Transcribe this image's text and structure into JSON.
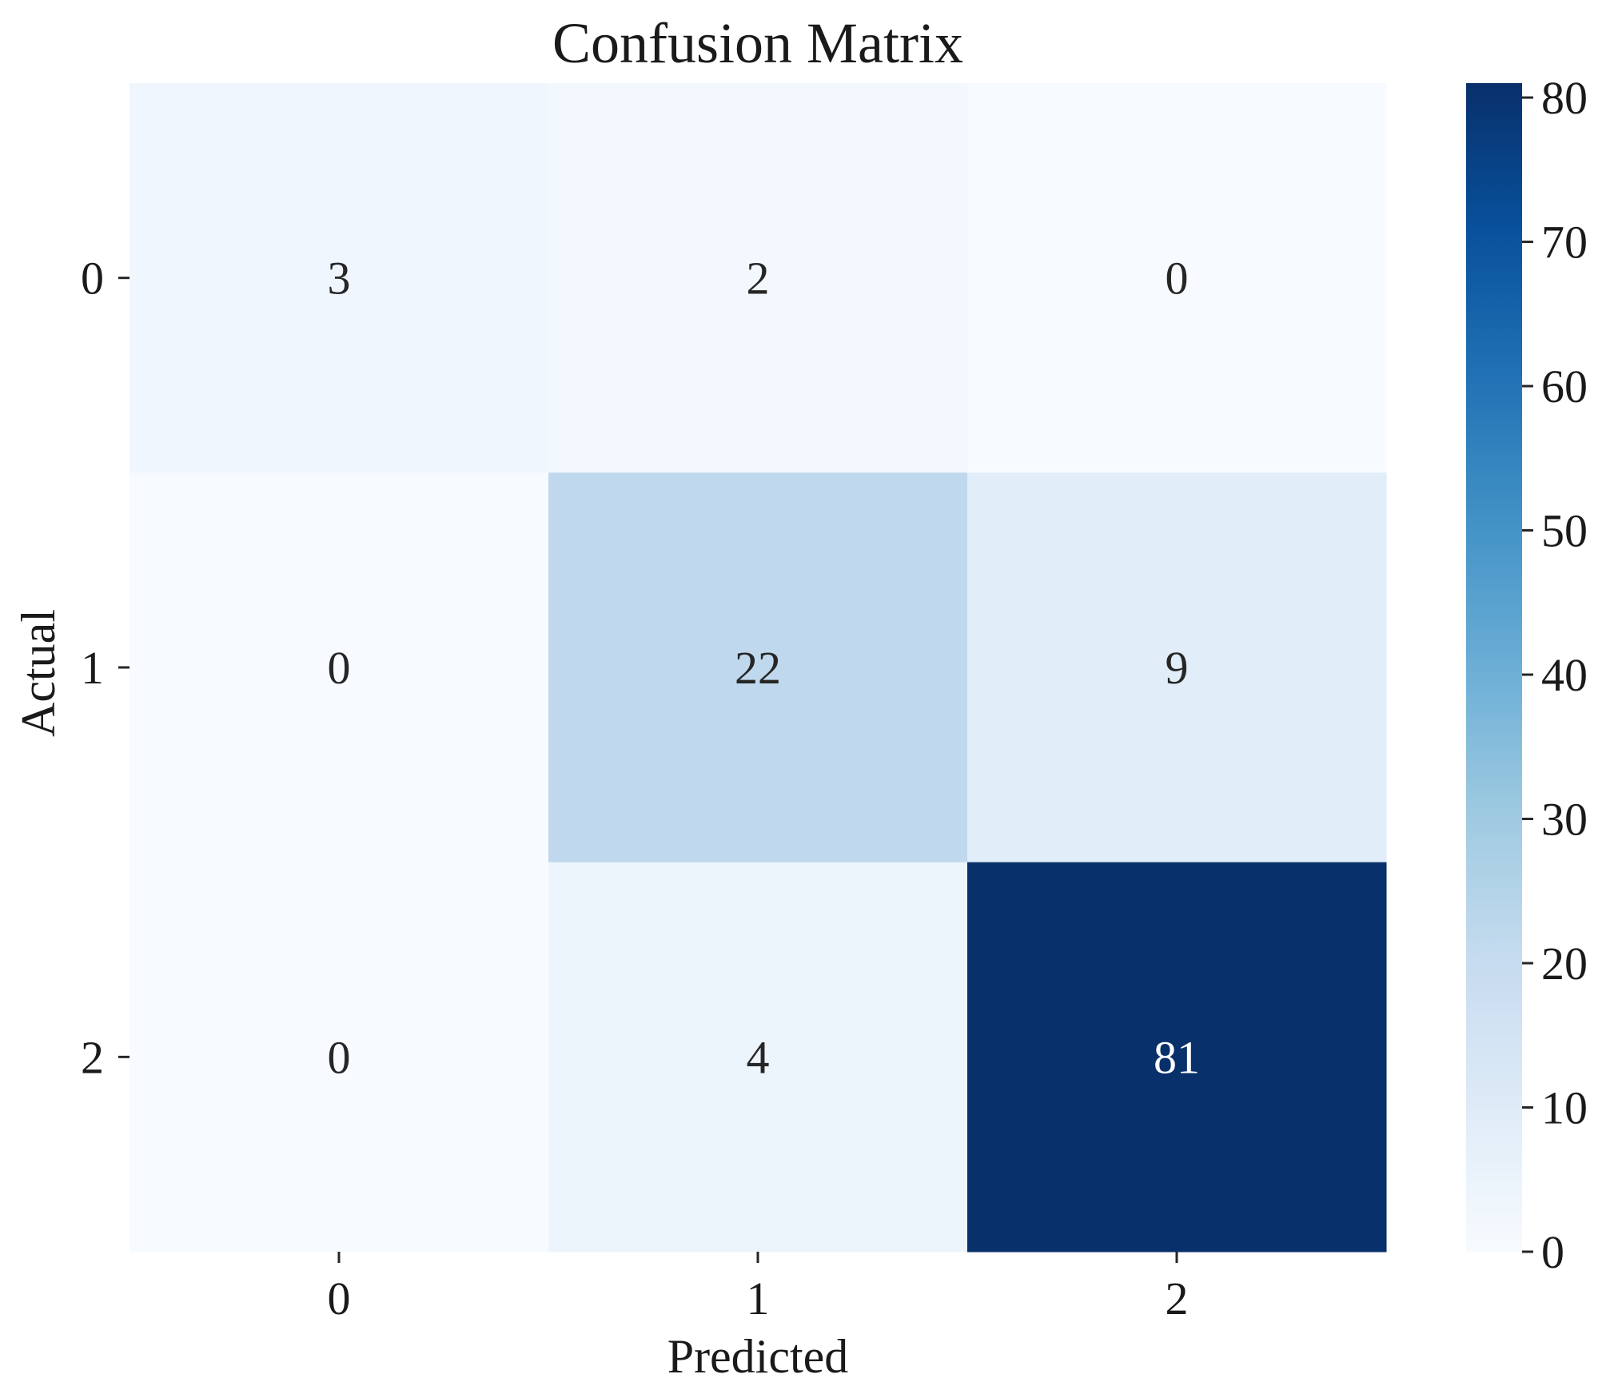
{
  "chart_data": {
    "type": "heatmap",
    "title": "Confusion Matrix",
    "xlabel": "Predicted",
    "ylabel": "Actual",
    "x_categories": [
      "0",
      "1",
      "2"
    ],
    "y_categories": [
      "0",
      "1",
      "2"
    ],
    "values": [
      [
        3,
        2,
        0
      ],
      [
        0,
        22,
        9
      ],
      [
        0,
        4,
        81
      ]
    ],
    "colormap": "Blues",
    "colormap_stops": [
      "#f7fbff",
      "#deebf7",
      "#c6dbef",
      "#9ecae1",
      "#6baed6",
      "#4292c6",
      "#2171b5",
      "#08519c",
      "#08306b"
    ],
    "colorbar": {
      "range": [
        0,
        81
      ],
      "ticks": [
        0,
        10,
        20,
        30,
        40,
        50,
        60,
        70,
        80
      ],
      "tick_labels": [
        "0",
        "10",
        "20",
        "30",
        "40",
        "50",
        "60",
        "70",
        "80"
      ]
    },
    "annotation_colors": {
      "light_background": "#262626",
      "dark_background": "#ffffff"
    }
  }
}
